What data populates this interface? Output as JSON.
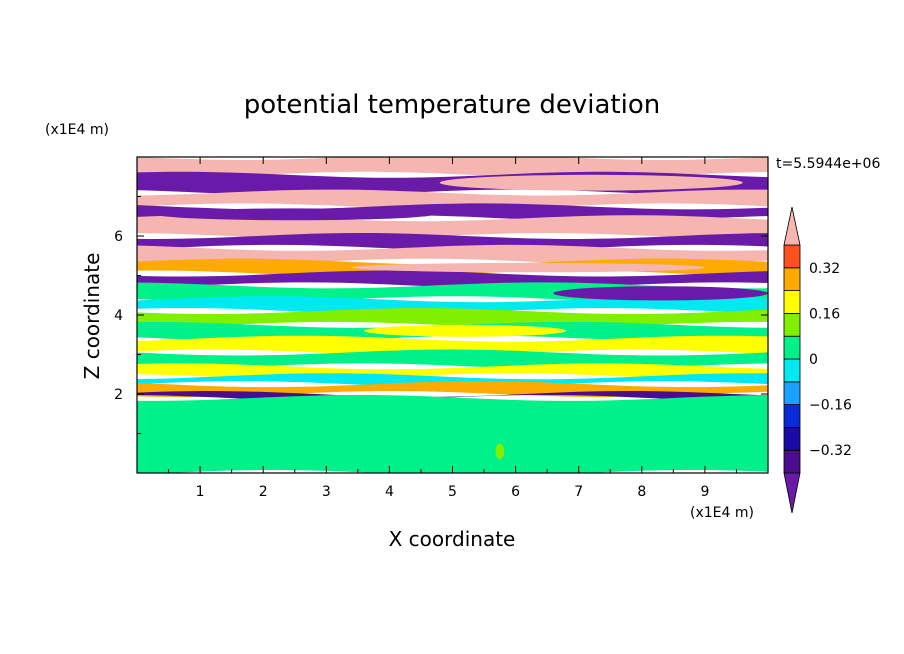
{
  "chart_data": {
    "type": "heatmap",
    "title": "potential temperature deviation",
    "xlabel": "X coordinate",
    "ylabel": "Z coordinate",
    "x_unit": "(x1E4 m)",
    "y_unit": "(x1E4 m)",
    "time_label": "t=5.5944e+06",
    "xlim": [
      0,
      10
    ],
    "ylim": [
      0,
      8
    ],
    "x_ticks": [
      {
        "v": 1,
        "label": "1"
      },
      {
        "v": 2,
        "label": "2"
      },
      {
        "v": 3,
        "label": "3"
      },
      {
        "v": 4,
        "label": "4"
      },
      {
        "v": 5,
        "label": "5"
      },
      {
        "v": 6,
        "label": "6"
      },
      {
        "v": 7,
        "label": "7"
      },
      {
        "v": 8,
        "label": "8"
      },
      {
        "v": 9,
        "label": "9"
      }
    ],
    "y_ticks": [
      {
        "v": 2,
        "label": "2"
      },
      {
        "v": 4,
        "label": "4"
      },
      {
        "v": 6,
        "label": "6"
      }
    ],
    "colorbar": {
      "levels": [
        -0.4,
        -0.32,
        -0.24,
        -0.16,
        -0.08,
        0,
        0.08,
        0.16,
        0.24,
        0.32,
        0.4
      ],
      "colors": [
        "#4b0d8f",
        "#1a0aa8",
        "#0a2ad8",
        "#1aa0ff",
        "#00e8f0",
        "#00f08a",
        "#80f000",
        "#ffff00",
        "#ffaa00",
        "#ff5020",
        "#ff2a2a"
      ],
      "under_color": "#6a1aa8",
      "over_color": "#f5b5b0",
      "labels": [
        {
          "v": 0.32,
          "label": "0.32"
        },
        {
          "v": 0.16,
          "label": "0.16"
        },
        {
          "v": 0,
          "label": "0"
        },
        {
          "v": -0.16,
          "label": "−0.16"
        },
        {
          "v": -0.32,
          "label": "−0.32"
        }
      ]
    },
    "bands": [
      {
        "z0": 7.55,
        "z1": 8.0,
        "value": 0.5
      },
      {
        "z0": 7.1,
        "z1": 7.55,
        "value": -0.5
      },
      {
        "z0": 6.75,
        "z1": 7.1,
        "value": 0.5
      },
      {
        "z0": 6.45,
        "z1": 6.75,
        "value": -0.5
      },
      {
        "z0": 6.0,
        "z1": 6.45,
        "value": 0.5
      },
      {
        "z0": 5.7,
        "z1": 6.0,
        "value": -0.5
      },
      {
        "z0": 5.35,
        "z1": 5.7,
        "value": 0.5
      },
      {
        "z0": 5.05,
        "z1": 5.35,
        "value": 0.28
      },
      {
        "z0": 4.75,
        "z1": 5.05,
        "value": -0.5
      },
      {
        "z0": 4.4,
        "z1": 4.75,
        "value": 0.05
      },
      {
        "z0": 4.1,
        "z1": 4.4,
        "value": -0.06
      },
      {
        "z0": 3.75,
        "z1": 4.1,
        "value": 0.1
      },
      {
        "z0": 3.4,
        "z1": 3.75,
        "value": 0.0
      },
      {
        "z0": 3.05,
        "z1": 3.4,
        "value": 0.18
      },
      {
        "z0": 2.7,
        "z1": 3.05,
        "value": 0.05
      },
      {
        "z0": 2.45,
        "z1": 2.7,
        "value": 0.2
      },
      {
        "z0": 2.25,
        "z1": 2.45,
        "value": -0.02
      },
      {
        "z0": 2.0,
        "z1": 2.25,
        "value": 0.3
      },
      {
        "z0": 1.9,
        "z1": 2.0,
        "value": -0.36
      },
      {
        "z0": 0.0,
        "z1": 1.9,
        "value": 0.06
      }
    ],
    "blobs": [
      {
        "x": 2.6,
        "z": 1.0,
        "rx": 1.0,
        "rz": 0.75,
        "value": 0.01
      },
      {
        "x": 4.2,
        "z": 1.3,
        "rx": 1.3,
        "rz": 0.45,
        "value": 0.01
      },
      {
        "x": 6.5,
        "z": 0.9,
        "rx": 1.1,
        "rz": 0.8,
        "value": 0.01
      },
      {
        "x": 8.6,
        "z": 1.0,
        "rx": 0.8,
        "rz": 0.7,
        "value": 0.01
      },
      {
        "x": 5.75,
        "z": 0.55,
        "rx": 0.07,
        "rz": 0.2,
        "value": 0.12
      },
      {
        "x": 7.2,
        "z": 7.35,
        "rx": 2.4,
        "rz": 0.2,
        "value": 0.5
      },
      {
        "x": 2.5,
        "z": 6.55,
        "rx": 2.2,
        "rz": 0.15,
        "value": -0.5
      },
      {
        "x": 8.3,
        "z": 4.55,
        "rx": 1.7,
        "rz": 0.18,
        "value": -0.5
      },
      {
        "x": 6.2,
        "z": 5.2,
        "rx": 2.8,
        "rz": 0.12,
        "value": 0.5
      },
      {
        "x": 5.2,
        "z": 3.6,
        "rx": 1.6,
        "rz": 0.15,
        "value": 0.18
      }
    ]
  }
}
